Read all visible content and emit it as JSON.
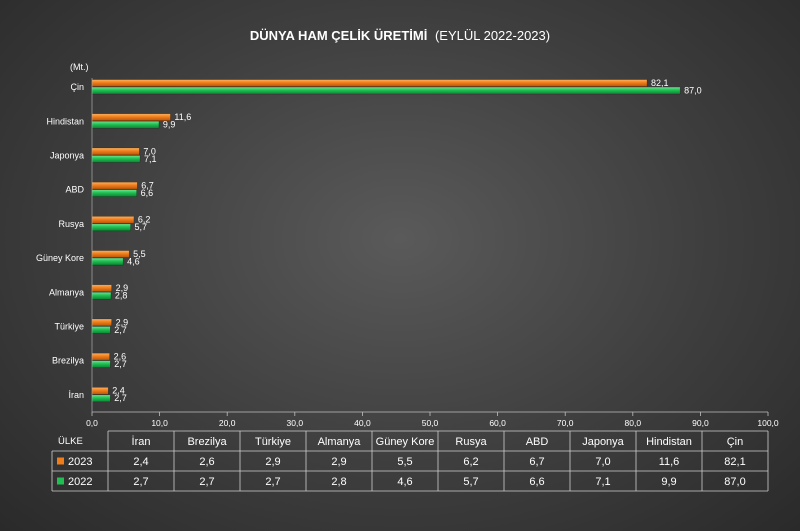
{
  "chart_data": {
    "type": "bar",
    "orientation": "horizontal",
    "title": "DÜNYA HAM ÇELİK ÜRETİMİ",
    "subtitle": "(EYLÜL 2022-2023)",
    "unit_label": "(Mt.)",
    "table_header_label": "ÜLKE",
    "categories": [
      "Çin",
      "Hindistan",
      "Japonya",
      "ABD",
      "Rusya",
      "Güney Kore",
      "Almanya",
      "Türkiye",
      "Brezilya",
      "İran"
    ],
    "table_categories": [
      "İran",
      "Brezilya",
      "Türkiye",
      "Almanya",
      "Güney Kore",
      "Rusya",
      "ABD",
      "Japonya",
      "Hindistan",
      "Çin"
    ],
    "series": [
      {
        "name": "2023",
        "color": "#f07d1a",
        "values": [
          82.1,
          11.6,
          7.0,
          6.7,
          6.2,
          5.5,
          2.9,
          2.9,
          2.6,
          2.4
        ],
        "labels": [
          "82,1",
          "11,6",
          "7,0",
          "6,7",
          "6,2",
          "5,5",
          "2,9",
          "2,9",
          "2,6",
          "2,4"
        ],
        "table_values": [
          "2,4",
          "2,6",
          "2,9",
          "2,9",
          "5,5",
          "6,2",
          "6,7",
          "7,0",
          "11,6",
          "82,1"
        ]
      },
      {
        "name": "2022",
        "color": "#1fbf52",
        "values": [
          87.0,
          9.9,
          7.1,
          6.6,
          5.7,
          4.6,
          2.8,
          2.7,
          2.7,
          2.7
        ],
        "labels": [
          "87,0",
          "9,9",
          "7,1",
          "6,6",
          "5,7",
          "4,6",
          "2,8",
          "2,7",
          "2,7",
          "2,7"
        ],
        "table_values": [
          "2,7",
          "2,7",
          "2,7",
          "2,8",
          "4,6",
          "5,7",
          "6,6",
          "7,1",
          "9,9",
          "87,0"
        ]
      }
    ],
    "xlim": [
      0,
      100
    ],
    "x_ticks": [
      0,
      10,
      20,
      30,
      40,
      50,
      60,
      70,
      80,
      90,
      100
    ],
    "x_tick_labels": [
      "0,0",
      "10,0",
      "20,0",
      "30,0",
      "40,0",
      "50,0",
      "60,0",
      "70,0",
      "80,0",
      "90,0",
      "100,0"
    ],
    "grid": false,
    "legend": "data-table-below"
  }
}
